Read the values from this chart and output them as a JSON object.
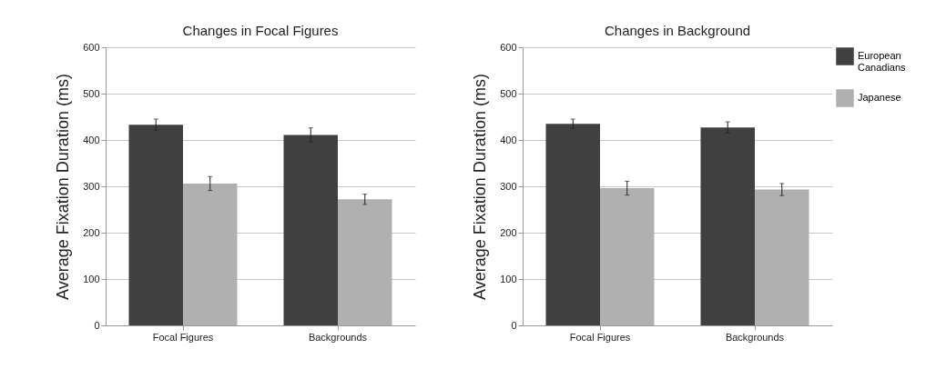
{
  "chart_data": [
    {
      "type": "bar",
      "title": "Changes in Focal Figures",
      "ylabel": "Average Fixation Duration (ms)",
      "categories": [
        "Focal Figures",
        "Backgrounds"
      ],
      "series": [
        {
          "color": "#404040",
          "values": [
            433,
            411
          ],
          "errors": [
            12,
            15
          ]
        },
        {
          "color": "#b0b0b0",
          "values": [
            306,
            272
          ],
          "errors": [
            15,
            11
          ]
        }
      ],
      "ylim": [
        0,
        600
      ],
      "yticks": [
        0,
        100,
        200,
        300,
        400,
        500,
        600
      ],
      "grid": "y"
    },
    {
      "type": "bar",
      "title": "Changes in Background",
      "ylabel": "Average Fixation Duration (ms)",
      "categories": [
        "Focal Figures",
        "Backgrounds"
      ],
      "series": [
        {
          "name": "European Canadians",
          "color": "#404040",
          "values": [
            435,
            427
          ],
          "errors": [
            10,
            12
          ]
        },
        {
          "name": "Japanese",
          "color": "#b0b0b0",
          "values": [
            296,
            293
          ],
          "errors": [
            15,
            13
          ]
        }
      ],
      "ylim": [
        0,
        600
      ],
      "yticks": [
        0,
        100,
        200,
        300,
        400,
        500,
        600
      ],
      "grid": "y",
      "legend": "right"
    }
  ]
}
